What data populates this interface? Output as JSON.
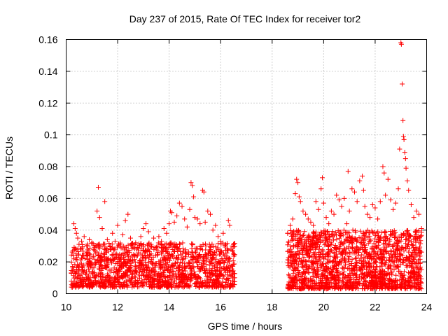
{
  "chart_data": {
    "type": "scatter",
    "title": "Day 237 of 2015, Rate Of TEC Index for receiver tor2",
    "xlabel": "GPS time / hours",
    "ylabel": "ROTI / TECUs",
    "xlim": [
      10,
      24
    ],
    "ylim": [
      0,
      0.16
    ],
    "xticks": [
      10,
      12,
      14,
      16,
      18,
      20,
      22,
      24
    ],
    "xtick_labels": [
      "10",
      "12",
      "14",
      "16",
      "18",
      "20",
      "22",
      "24"
    ],
    "yticks": [
      0,
      0.02,
      0.04,
      0.06,
      0.08,
      0.1,
      0.12,
      0.14,
      0.16
    ],
    "ytick_labels": [
      "0",
      "0.02",
      "0.04",
      "0.06",
      "0.08",
      "0.1",
      "0.12",
      "0.14",
      "0.16"
    ],
    "grid": true,
    "marker": "+",
    "color": "#ff0000",
    "series": [
      {
        "name": "tor2",
        "points": [
          [
            10.3,
            0.044
          ],
          [
            10.35,
            0.041
          ],
          [
            10.4,
            0.038
          ],
          [
            10.45,
            0.035
          ],
          [
            10.5,
            0.031
          ],
          [
            10.55,
            0.028
          ],
          [
            10.6,
            0.033
          ],
          [
            10.7,
            0.036
          ],
          [
            10.8,
            0.03
          ],
          [
            10.9,
            0.034
          ],
          [
            11.0,
            0.032
          ],
          [
            11.1,
            0.029
          ],
          [
            11.2,
            0.052
          ],
          [
            11.25,
            0.067
          ],
          [
            11.3,
            0.048
          ],
          [
            11.4,
            0.041
          ],
          [
            11.5,
            0.058
          ],
          [
            11.6,
            0.034
          ],
          [
            11.7,
            0.03
          ],
          [
            11.8,
            0.038
          ],
          [
            11.9,
            0.033
          ],
          [
            12.0,
            0.043
          ],
          [
            12.1,
            0.031
          ],
          [
            12.2,
            0.037
          ],
          [
            12.3,
            0.046
          ],
          [
            12.4,
            0.05
          ],
          [
            12.5,
            0.035
          ],
          [
            12.6,
            0.029
          ],
          [
            12.7,
            0.032
          ],
          [
            12.8,
            0.027
          ],
          [
            12.9,
            0.036
          ],
          [
            13.0,
            0.041
          ],
          [
            13.1,
            0.044
          ],
          [
            13.2,
            0.039
          ],
          [
            13.3,
            0.031
          ],
          [
            13.4,
            0.035
          ],
          [
            13.5,
            0.028
          ],
          [
            13.6,
            0.036
          ],
          [
            13.7,
            0.033
          ],
          [
            13.8,
            0.041
          ],
          [
            13.9,
            0.038
          ],
          [
            14.0,
            0.044
          ],
          [
            14.05,
            0.052
          ],
          [
            14.1,
            0.051
          ],
          [
            14.2,
            0.045
          ],
          [
            14.3,
            0.049
          ],
          [
            14.4,
            0.057
          ],
          [
            14.5,
            0.055
          ],
          [
            14.6,
            0.047
          ],
          [
            14.7,
            0.042
          ],
          [
            14.8,
            0.053
          ],
          [
            14.85,
            0.07
          ],
          [
            14.9,
            0.068
          ],
          [
            14.95,
            0.061
          ],
          [
            15.0,
            0.048
          ],
          [
            15.1,
            0.047
          ],
          [
            15.2,
            0.044
          ],
          [
            15.3,
            0.065
          ],
          [
            15.35,
            0.064
          ],
          [
            15.4,
            0.045
          ],
          [
            15.5,
            0.052
          ],
          [
            15.6,
            0.05
          ],
          [
            15.7,
            0.04
          ],
          [
            15.8,
            0.043
          ],
          [
            15.9,
            0.036
          ],
          [
            16.0,
            0.033
          ],
          [
            16.1,
            0.038
          ],
          [
            16.2,
            0.031
          ],
          [
            16.3,
            0.046
          ],
          [
            16.35,
            0.043
          ],
          [
            16.4,
            0.028
          ],
          [
            16.5,
            0.025
          ],
          [
            18.6,
            0.038
          ],
          [
            18.7,
            0.043
          ],
          [
            18.8,
            0.047
          ],
          [
            18.9,
            0.063
          ],
          [
            18.95,
            0.072
          ],
          [
            19.0,
            0.07
          ],
          [
            19.05,
            0.061
          ],
          [
            19.1,
            0.058
          ],
          [
            19.2,
            0.052
          ],
          [
            19.3,
            0.05
          ],
          [
            19.4,
            0.047
          ],
          [
            19.5,
            0.045
          ],
          [
            19.6,
            0.043
          ],
          [
            19.7,
            0.058
          ],
          [
            19.8,
            0.053
          ],
          [
            19.9,
            0.066
          ],
          [
            19.95,
            0.073
          ],
          [
            20.0,
            0.057
          ],
          [
            20.1,
            0.048
          ],
          [
            20.2,
            0.044
          ],
          [
            20.3,
            0.052
          ],
          [
            20.4,
            0.05
          ],
          [
            20.5,
            0.062
          ],
          [
            20.6,
            0.059
          ],
          [
            20.7,
            0.055
          ],
          [
            20.8,
            0.06
          ],
          [
            20.9,
            0.044
          ],
          [
            20.95,
            0.077
          ],
          [
            21.0,
            0.052
          ],
          [
            21.1,
            0.066
          ],
          [
            21.2,
            0.064
          ],
          [
            21.3,
            0.058
          ],
          [
            21.4,
            0.071
          ],
          [
            21.5,
            0.074
          ],
          [
            21.55,
            0.065
          ],
          [
            21.6,
            0.055
          ],
          [
            21.7,
            0.05
          ],
          [
            21.8,
            0.048
          ],
          [
            21.9,
            0.056
          ],
          [
            22.0,
            0.054
          ],
          [
            22.1,
            0.047
          ],
          [
            22.2,
            0.058
          ],
          [
            22.3,
            0.08
          ],
          [
            22.35,
            0.076
          ],
          [
            22.4,
            0.062
          ],
          [
            22.5,
            0.072
          ],
          [
            22.6,
            0.059
          ],
          [
            22.7,
            0.053
          ],
          [
            22.8,
            0.057
          ],
          [
            22.9,
            0.066
          ],
          [
            22.95,
            0.091
          ],
          [
            23.0,
            0.158
          ],
          [
            23.02,
            0.157
          ],
          [
            23.05,
            0.132
          ],
          [
            23.08,
            0.109
          ],
          [
            23.1,
            0.099
          ],
          [
            23.12,
            0.097
          ],
          [
            23.15,
            0.089
          ],
          [
            23.18,
            0.085
          ],
          [
            23.2,
            0.079
          ],
          [
            23.25,
            0.071
          ],
          [
            23.3,
            0.065
          ],
          [
            23.4,
            0.056
          ],
          [
            23.5,
            0.048
          ],
          [
            23.6,
            0.052
          ],
          [
            23.7,
            0.05
          ],
          [
            23.8,
            0.041
          ]
        ],
        "ranges": [
          {
            "start": 10.2,
            "end": 16.55,
            "low": 0.004,
            "high": 0.032,
            "count": 1500,
            "seed": 11
          },
          {
            "start": 18.6,
            "end": 23.8,
            "low": 0.003,
            "high": 0.04,
            "count": 1700,
            "seed": 29
          }
        ]
      }
    ]
  }
}
